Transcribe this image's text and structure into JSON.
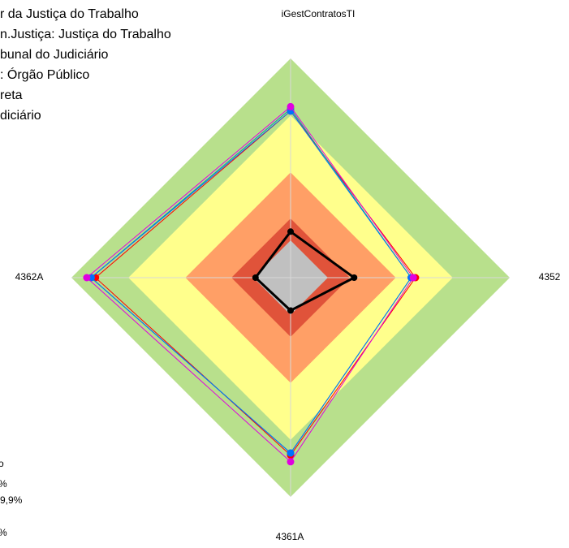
{
  "chart_data": {
    "type": "radar",
    "categories": [
      "iGestContratosTI",
      "4352",
      "4361A",
      "4362A"
    ],
    "rlim": [
      0,
      100
    ],
    "bands": [
      {
        "value": 100,
        "color": "#b8e08c"
      },
      {
        "value": 74,
        "color": "#ffff8c"
      },
      {
        "value": 48,
        "color": "#ff9f66"
      },
      {
        "value": 27,
        "color": "#e0533a"
      },
      {
        "value": 17,
        "color": "#c0c0c0"
      }
    ],
    "series": [
      {
        "color": "#ff0000",
        "values": [
          76,
          57,
          81,
          89
        ]
      },
      {
        "color": "#00a0a0",
        "values": [
          77,
          55,
          80,
          91
        ]
      },
      {
        "color": "#0070ff",
        "values": [
          76,
          55,
          80,
          91
        ]
      },
      {
        "color": "#e000e0",
        "values": [
          78,
          56,
          84,
          93
        ]
      },
      {
        "color": "#000000",
        "values": [
          21,
          29,
          15,
          16
        ]
      }
    ],
    "info_lines": [
      "r da Justiça do Trabalho",
      "n.Justiça: Justiça do Trabalho",
      "bunal do Judiciário",
      ": Órgão Público",
      "reta",
      "diciário"
    ],
    "footer_lines": [
      "o",
      "%",
      "9,9%",
      "%"
    ]
  }
}
